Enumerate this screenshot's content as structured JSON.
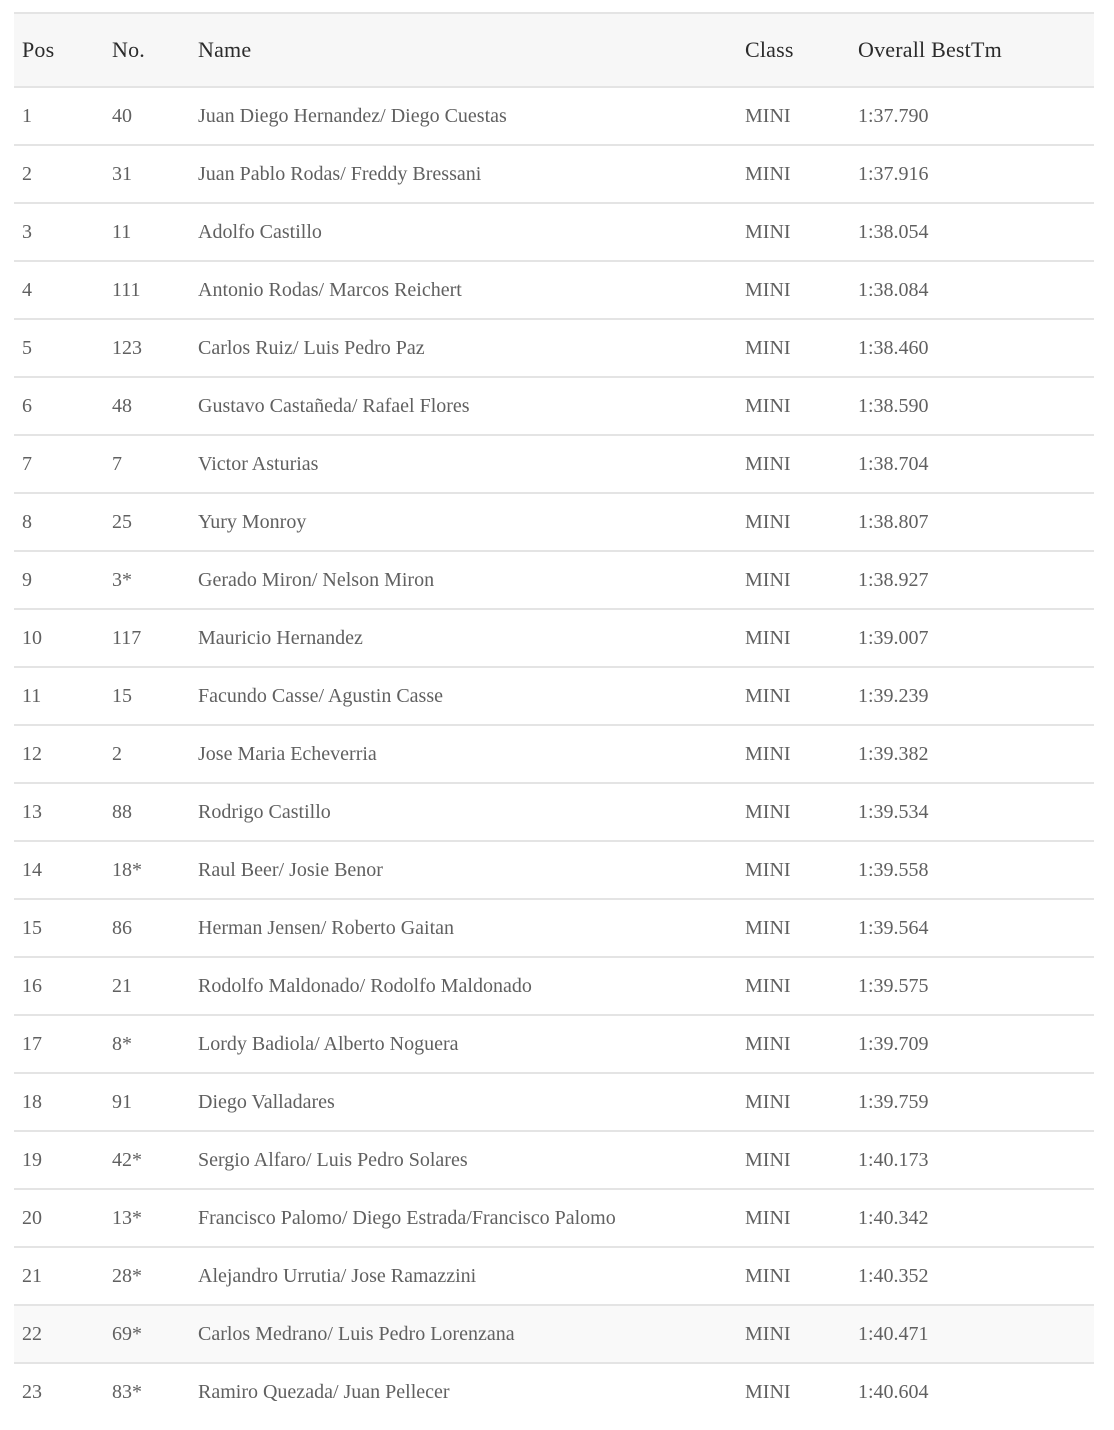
{
  "colors": {
    "page_bg": "#ffffff",
    "header_bg": "#f7f7f7",
    "row_highlight_bg": "#f9f9f9",
    "divider": "#e4e4e4",
    "header_text": "#2b2b2b",
    "body_text": "#606060"
  },
  "table": {
    "columns": [
      {
        "key": "pos",
        "label": "Pos"
      },
      {
        "key": "no",
        "label": "No."
      },
      {
        "key": "name",
        "label": "Name"
      },
      {
        "key": "class",
        "label": "Class"
      },
      {
        "key": "best_tm",
        "label": "Overall BestTm"
      }
    ],
    "highlighted_row_pos": "22",
    "rows": [
      {
        "pos": "1",
        "no": "40",
        "name": "Juan Diego Hernandez/ Diego Cuestas",
        "class": "MINI",
        "best_tm": "1:37.790"
      },
      {
        "pos": "2",
        "no": "31",
        "name": "Juan Pablo Rodas/ Freddy Bressani",
        "class": "MINI",
        "best_tm": "1:37.916"
      },
      {
        "pos": "3",
        "no": "11",
        "name": "Adolfo Castillo",
        "class": "MINI",
        "best_tm": "1:38.054"
      },
      {
        "pos": "4",
        "no": "111",
        "name": "Antonio Rodas/ Marcos Reichert",
        "class": "MINI",
        "best_tm": "1:38.084"
      },
      {
        "pos": "5",
        "no": "123",
        "name": "Carlos Ruiz/ Luis Pedro Paz",
        "class": "MINI",
        "best_tm": "1:38.460"
      },
      {
        "pos": "6",
        "no": "48",
        "name": "Gustavo Castañeda/ Rafael Flores",
        "class": "MINI",
        "best_tm": "1:38.590"
      },
      {
        "pos": "7",
        "no": "7",
        "name": "Victor Asturias",
        "class": "MINI",
        "best_tm": "1:38.704"
      },
      {
        "pos": "8",
        "no": "25",
        "name": "Yury Monroy",
        "class": "MINI",
        "best_tm": "1:38.807"
      },
      {
        "pos": "9",
        "no": "3*",
        "name": "Gerado Miron/ Nelson Miron",
        "class": "MINI",
        "best_tm": "1:38.927"
      },
      {
        "pos": "10",
        "no": "117",
        "name": "Mauricio Hernandez",
        "class": "MINI",
        "best_tm": "1:39.007"
      },
      {
        "pos": "11",
        "no": "15",
        "name": "Facundo Casse/ Agustin Casse",
        "class": "MINI",
        "best_tm": "1:39.239"
      },
      {
        "pos": "12",
        "no": "2",
        "name": "Jose Maria Echeverria",
        "class": "MINI",
        "best_tm": "1:39.382"
      },
      {
        "pos": "13",
        "no": "88",
        "name": "Rodrigo Castillo",
        "class": "MINI",
        "best_tm": "1:39.534"
      },
      {
        "pos": "14",
        "no": "18*",
        "name": "Raul Beer/ Josie Benor",
        "class": "MINI",
        "best_tm": "1:39.558"
      },
      {
        "pos": "15",
        "no": "86",
        "name": "Herman Jensen/ Roberto Gaitan",
        "class": "MINI",
        "best_tm": "1:39.564"
      },
      {
        "pos": "16",
        "no": "21",
        "name": "Rodolfo Maldonado/ Rodolfo Maldonado",
        "class": "MINI",
        "best_tm": "1:39.575"
      },
      {
        "pos": "17",
        "no": "8*",
        "name": "Lordy Badiola/ Alberto Noguera",
        "class": "MINI",
        "best_tm": "1:39.709"
      },
      {
        "pos": "18",
        "no": "91",
        "name": "Diego Valladares",
        "class": "MINI",
        "best_tm": "1:39.759"
      },
      {
        "pos": "19",
        "no": "42*",
        "name": "Sergio Alfaro/ Luis Pedro Solares",
        "class": "MINI",
        "best_tm": "1:40.173"
      },
      {
        "pos": "20",
        "no": "13*",
        "name": "Francisco Palomo/ Diego Estrada/Francisco Palomo",
        "class": "MINI",
        "best_tm": "1:40.342"
      },
      {
        "pos": "21",
        "no": "28*",
        "name": "Alejandro Urrutia/ Jose Ramazzini",
        "class": "MINI",
        "best_tm": "1:40.352"
      },
      {
        "pos": "22",
        "no": "69*",
        "name": "Carlos Medrano/ Luis Pedro Lorenzana",
        "class": "MINI",
        "best_tm": "1:40.471"
      },
      {
        "pos": "23",
        "no": "83*",
        "name": "Ramiro Quezada/ Juan Pellecer",
        "class": "MINI",
        "best_tm": "1:40.604"
      }
    ]
  }
}
